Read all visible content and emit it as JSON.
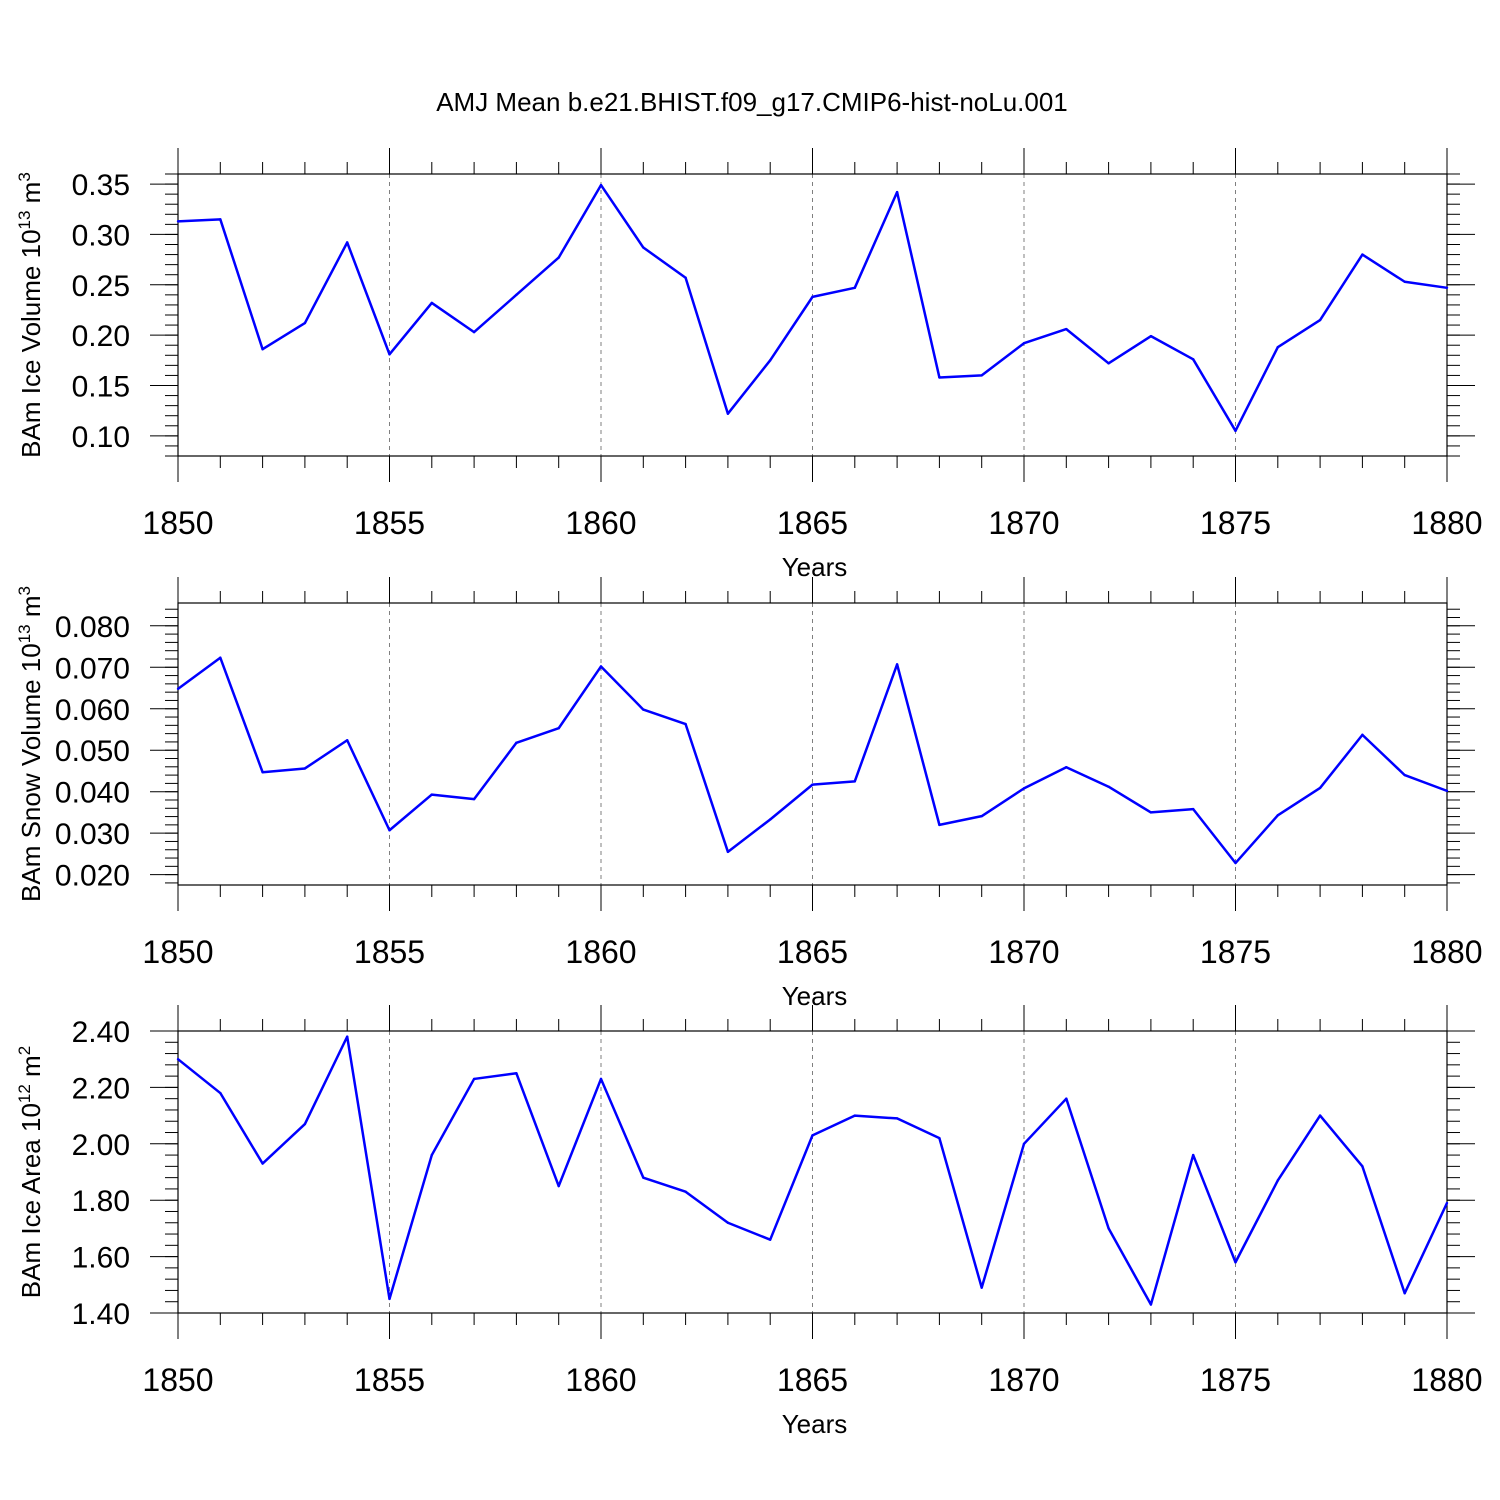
{
  "title": "AMJ Mean b.e21.BHIST.f09_g17.CMIP6-hist-noLu.001",
  "colors": {
    "series": "#0000ff",
    "grid": "#7f7f7f",
    "axis": "#000000"
  },
  "chart_data": [
    {
      "type": "line",
      "ylabel": "BAm Ice Volume 10",
      "ylabel_exp": "13",
      "ylabel_unit": " m",
      "ylabel_unit_exp": "3",
      "xlabel": "Years",
      "xlim": [
        1850,
        1880
      ],
      "ylim": [
        0.08,
        0.36
      ],
      "yticks": [
        0.1,
        0.15,
        0.2,
        0.25,
        0.3,
        0.35
      ],
      "ytick_labels": [
        "0.10",
        "0.15",
        "0.20",
        "0.25",
        "0.30",
        "0.35"
      ],
      "yminor_step": 0.01,
      "xticks": [
        1850,
        1855,
        1860,
        1865,
        1870,
        1875,
        1880
      ],
      "xtick_labels": [
        "1850",
        "1855",
        "1860",
        "1865",
        "1870",
        "1875",
        "1880"
      ],
      "grid_x": [
        1855,
        1860,
        1865,
        1870,
        1875
      ],
      "x": [
        1850,
        1851,
        1852,
        1853,
        1854,
        1855,
        1856,
        1857,
        1858,
        1859,
        1860,
        1861,
        1862,
        1863,
        1864,
        1865,
        1866,
        1867,
        1868,
        1869,
        1870,
        1871,
        1872,
        1873,
        1874,
        1875,
        1876,
        1877,
        1878,
        1879,
        1880
      ],
      "values": [
        0.313,
        0.315,
        0.186,
        0.212,
        0.292,
        0.181,
        0.232,
        0.203,
        0.24,
        0.277,
        0.349,
        0.287,
        0.257,
        0.122,
        0.175,
        0.238,
        0.247,
        0.342,
        0.158,
        0.16,
        0.192,
        0.206,
        0.172,
        0.199,
        0.176,
        0.105,
        0.188,
        0.215,
        0.28,
        0.253,
        0.247
      ]
    },
    {
      "type": "line",
      "ylabel": "BAm Snow Volume 10",
      "ylabel_exp": "13",
      "ylabel_unit": " m",
      "ylabel_unit_exp": "3",
      "xlabel": "Years",
      "xlim": [
        1850,
        1880
      ],
      "ylim": [
        0.0175,
        0.0855
      ],
      "yticks": [
        0.02,
        0.03,
        0.04,
        0.05,
        0.06,
        0.07,
        0.08
      ],
      "ytick_labels": [
        "0.020",
        "0.030",
        "0.040",
        "0.050",
        "0.060",
        "0.070",
        "0.080"
      ],
      "yminor_step": 0.002,
      "xticks": [
        1850,
        1855,
        1860,
        1865,
        1870,
        1875,
        1880
      ],
      "xtick_labels": [
        "1850",
        "1855",
        "1860",
        "1865",
        "1870",
        "1875",
        "1880"
      ],
      "grid_x": [
        1855,
        1860,
        1865,
        1870,
        1875
      ],
      "x": [
        1850,
        1851,
        1852,
        1853,
        1854,
        1855,
        1856,
        1857,
        1858,
        1859,
        1860,
        1861,
        1862,
        1863,
        1864,
        1865,
        1866,
        1867,
        1868,
        1869,
        1870,
        1871,
        1872,
        1873,
        1874,
        1875,
        1876,
        1877,
        1878,
        1879,
        1880
      ],
      "values": [
        0.0648,
        0.0723,
        0.0447,
        0.0456,
        0.0524,
        0.0307,
        0.0393,
        0.0382,
        0.0518,
        0.0553,
        0.0702,
        0.0598,
        0.0563,
        0.0255,
        0.0333,
        0.0417,
        0.0425,
        0.0707,
        0.032,
        0.0341,
        0.0408,
        0.0459,
        0.0412,
        0.035,
        0.0358,
        0.0228,
        0.0343,
        0.0409,
        0.0537,
        0.044,
        0.0402
      ]
    },
    {
      "type": "line",
      "ylabel": "BAm Ice Area 10",
      "ylabel_exp": "12",
      "ylabel_unit": " m",
      "ylabel_unit_exp": "2",
      "xlabel": "Years",
      "xlim": [
        1850,
        1880
      ],
      "ylim": [
        1.4,
        2.4
      ],
      "yticks": [
        1.4,
        1.6,
        1.8,
        2.0,
        2.2,
        2.4
      ],
      "ytick_labels": [
        "1.40",
        "1.60",
        "1.80",
        "2.00",
        "2.20",
        "2.40"
      ],
      "yminor_step": 0.04,
      "xticks": [
        1850,
        1855,
        1860,
        1865,
        1870,
        1875,
        1880
      ],
      "xtick_labels": [
        "1850",
        "1855",
        "1860",
        "1865",
        "1870",
        "1875",
        "1880"
      ],
      "grid_x": [
        1855,
        1860,
        1865,
        1870,
        1875
      ],
      "x": [
        1850,
        1851,
        1852,
        1853,
        1854,
        1855,
        1856,
        1857,
        1858,
        1859,
        1860,
        1861,
        1862,
        1863,
        1864,
        1865,
        1866,
        1867,
        1868,
        1869,
        1870,
        1871,
        1872,
        1873,
        1874,
        1875,
        1876,
        1877,
        1878,
        1879,
        1880
      ],
      "values": [
        2.3,
        2.18,
        1.93,
        2.07,
        2.38,
        1.45,
        1.96,
        2.23,
        2.25,
        1.85,
        2.23,
        1.88,
        1.83,
        1.72,
        1.66,
        2.03,
        2.1,
        2.09,
        2.02,
        1.49,
        2.0,
        2.16,
        1.7,
        1.43,
        1.96,
        1.58,
        1.87,
        2.1,
        1.92,
        1.47,
        1.79
      ]
    }
  ]
}
